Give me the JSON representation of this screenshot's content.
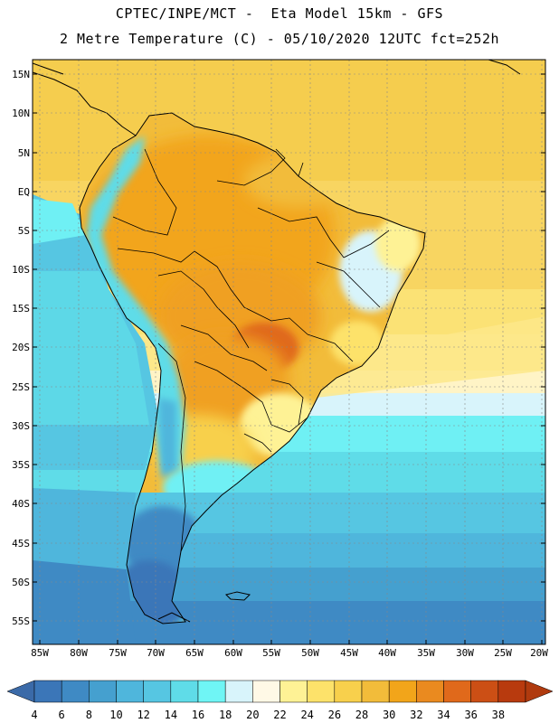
{
  "header": {
    "line1": "CPTEC/INPE/MCT -  Eta Model 15km - GFS",
    "line2": "2 Metre Temperature (C) - 05/10/2020 12UTC fct=252h"
  },
  "map": {
    "lat_labels": [
      "15N",
      "10N",
      "5N",
      "EQ",
      "5S",
      "10S",
      "15S",
      "20S",
      "25S",
      "30S",
      "35S",
      "40S",
      "45S",
      "50S",
      "55S"
    ],
    "lon_labels": [
      "85W",
      "80W",
      "75W",
      "70W",
      "65W",
      "60W",
      "55W",
      "50W",
      "45W",
      "40W",
      "35W",
      "30W",
      "25W",
      "20W"
    ],
    "lat_range": [
      15.5,
      -58.5
    ],
    "lon_range": [
      -86,
      -19.5
    ],
    "region": "South America"
  },
  "colorbar": {
    "labels": [
      "4",
      "6",
      "8",
      "10",
      "12",
      "14",
      "16",
      "18",
      "20",
      "22",
      "24",
      "26",
      "28",
      "30",
      "32",
      "34",
      "36",
      "38"
    ],
    "colors": [
      "#3b76b8",
      "#3f8ac4",
      "#45a0cf",
      "#4fb6dc",
      "#56c6e2",
      "#5fdce8",
      "#6ff5f5",
      "#d8f4fb",
      "#fff9e6",
      "#fef295",
      "#fde26a",
      "#f8d04c",
      "#f2bc3a",
      "#f2a51a",
      "#ea8a1f",
      "#e0691b",
      "#cc4f15",
      "#b83a0e"
    ],
    "low_arrow_color": "#3b6aa8",
    "high_arrow_color": "#b03a0e"
  }
}
